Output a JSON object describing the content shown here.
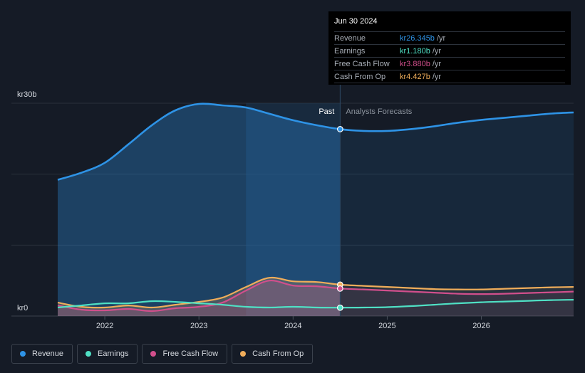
{
  "chart_data": {
    "type": "area",
    "y_unit_prefix": "kr",
    "ylim": [
      0,
      30
    ],
    "y_axis_labels": [
      "kr30b",
      "kr0"
    ],
    "x_tick_labels": [
      "2022",
      "2023",
      "2024",
      "2025",
      "2026"
    ],
    "x_tick_values": [
      2022,
      2023,
      2024,
      2025,
      2026
    ],
    "xlim": [
      2021.25,
      2026.98
    ],
    "past_label": "Past",
    "forecast_label": "Analysts Forecasts",
    "divider_x": 2024.5,
    "highlight_start_x": 2023.5,
    "series": [
      {
        "name": "Revenue",
        "color": "#2e93e6",
        "filled": true,
        "x": [
          2021.5,
          2021.75,
          2022.0,
          2022.25,
          2022.5,
          2022.75,
          2023.0,
          2023.25,
          2023.5,
          2023.75,
          2024.0,
          2024.25,
          2024.5,
          2024.75,
          2025.0,
          2025.25,
          2025.5,
          2025.75,
          2026.0,
          2026.25,
          2026.5,
          2026.75,
          2026.98
        ],
        "values": [
          19.2,
          20.2,
          21.6,
          24.2,
          26.9,
          29.0,
          29.9,
          29.7,
          29.4,
          28.5,
          27.6,
          26.9,
          26.345,
          26.1,
          26.1,
          26.35,
          26.75,
          27.25,
          27.65,
          27.95,
          28.25,
          28.55,
          28.7
        ]
      },
      {
        "name": "Cash From Op",
        "color": "#f0ad5a",
        "filled": true,
        "x": [
          2021.5,
          2021.75,
          2022.0,
          2022.25,
          2022.5,
          2022.75,
          2023.0,
          2023.25,
          2023.5,
          2023.75,
          2024.0,
          2024.25,
          2024.5,
          2024.75,
          2025.0,
          2025.25,
          2025.5,
          2025.75,
          2026.0,
          2026.25,
          2026.5,
          2026.75,
          2026.98
        ],
        "values": [
          1.9,
          1.3,
          1.2,
          1.5,
          1.2,
          1.6,
          2.0,
          2.6,
          4.1,
          5.4,
          4.9,
          4.8,
          4.427,
          4.25,
          4.1,
          3.95,
          3.8,
          3.75,
          3.75,
          3.85,
          3.95,
          4.05,
          4.1
        ]
      },
      {
        "name": "Free Cash Flow",
        "color": "#d14f8c",
        "filled": true,
        "x": [
          2021.5,
          2021.75,
          2022.0,
          2022.25,
          2022.5,
          2022.75,
          2023.0,
          2023.25,
          2023.5,
          2023.75,
          2024.0,
          2024.25,
          2024.5,
          2024.75,
          2025.0,
          2025.25,
          2025.5,
          2025.75,
          2026.0,
          2026.25,
          2026.5,
          2026.75,
          2026.98
        ],
        "values": [
          1.5,
          0.9,
          0.8,
          1.0,
          0.7,
          1.1,
          1.3,
          1.9,
          3.6,
          5.0,
          4.3,
          4.2,
          3.88,
          3.75,
          3.6,
          3.45,
          3.3,
          3.15,
          3.1,
          3.15,
          3.25,
          3.35,
          3.45
        ]
      },
      {
        "name": "Earnings",
        "color": "#4fe0c4",
        "filled": false,
        "x": [
          2021.5,
          2021.75,
          2022.0,
          2022.25,
          2022.5,
          2022.75,
          2023.0,
          2023.25,
          2023.5,
          2023.75,
          2024.0,
          2024.25,
          2024.5,
          2024.75,
          2025.0,
          2025.25,
          2025.5,
          2025.75,
          2026.0,
          2026.25,
          2026.5,
          2026.75,
          2026.98
        ],
        "values": [
          1.2,
          1.5,
          1.8,
          1.8,
          2.1,
          2.0,
          1.8,
          1.6,
          1.3,
          1.2,
          1.3,
          1.2,
          1.18,
          1.2,
          1.25,
          1.4,
          1.6,
          1.8,
          1.95,
          2.05,
          2.15,
          2.25,
          2.3
        ]
      }
    ],
    "highlight_point_x": 2024.5
  },
  "tooltip": {
    "date": "Jun 30 2024",
    "unit": "/yr",
    "rows": [
      {
        "name": "Revenue",
        "value": "kr26.345b",
        "color": "#2e93e6"
      },
      {
        "name": "Earnings",
        "value": "kr1.180b",
        "color": "#4fe0c4"
      },
      {
        "name": "Free Cash Flow",
        "value": "kr3.880b",
        "color": "#d14f8c"
      },
      {
        "name": "Cash From Op",
        "value": "kr4.427b",
        "color": "#f0ad5a"
      }
    ]
  },
  "legend": [
    {
      "label": "Revenue",
      "color": "#2e93e6"
    },
    {
      "label": "Earnings",
      "color": "#4fe0c4"
    },
    {
      "label": "Free Cash Flow",
      "color": "#d14f8c"
    },
    {
      "label": "Cash From Op",
      "color": "#f0ad5a"
    }
  ]
}
